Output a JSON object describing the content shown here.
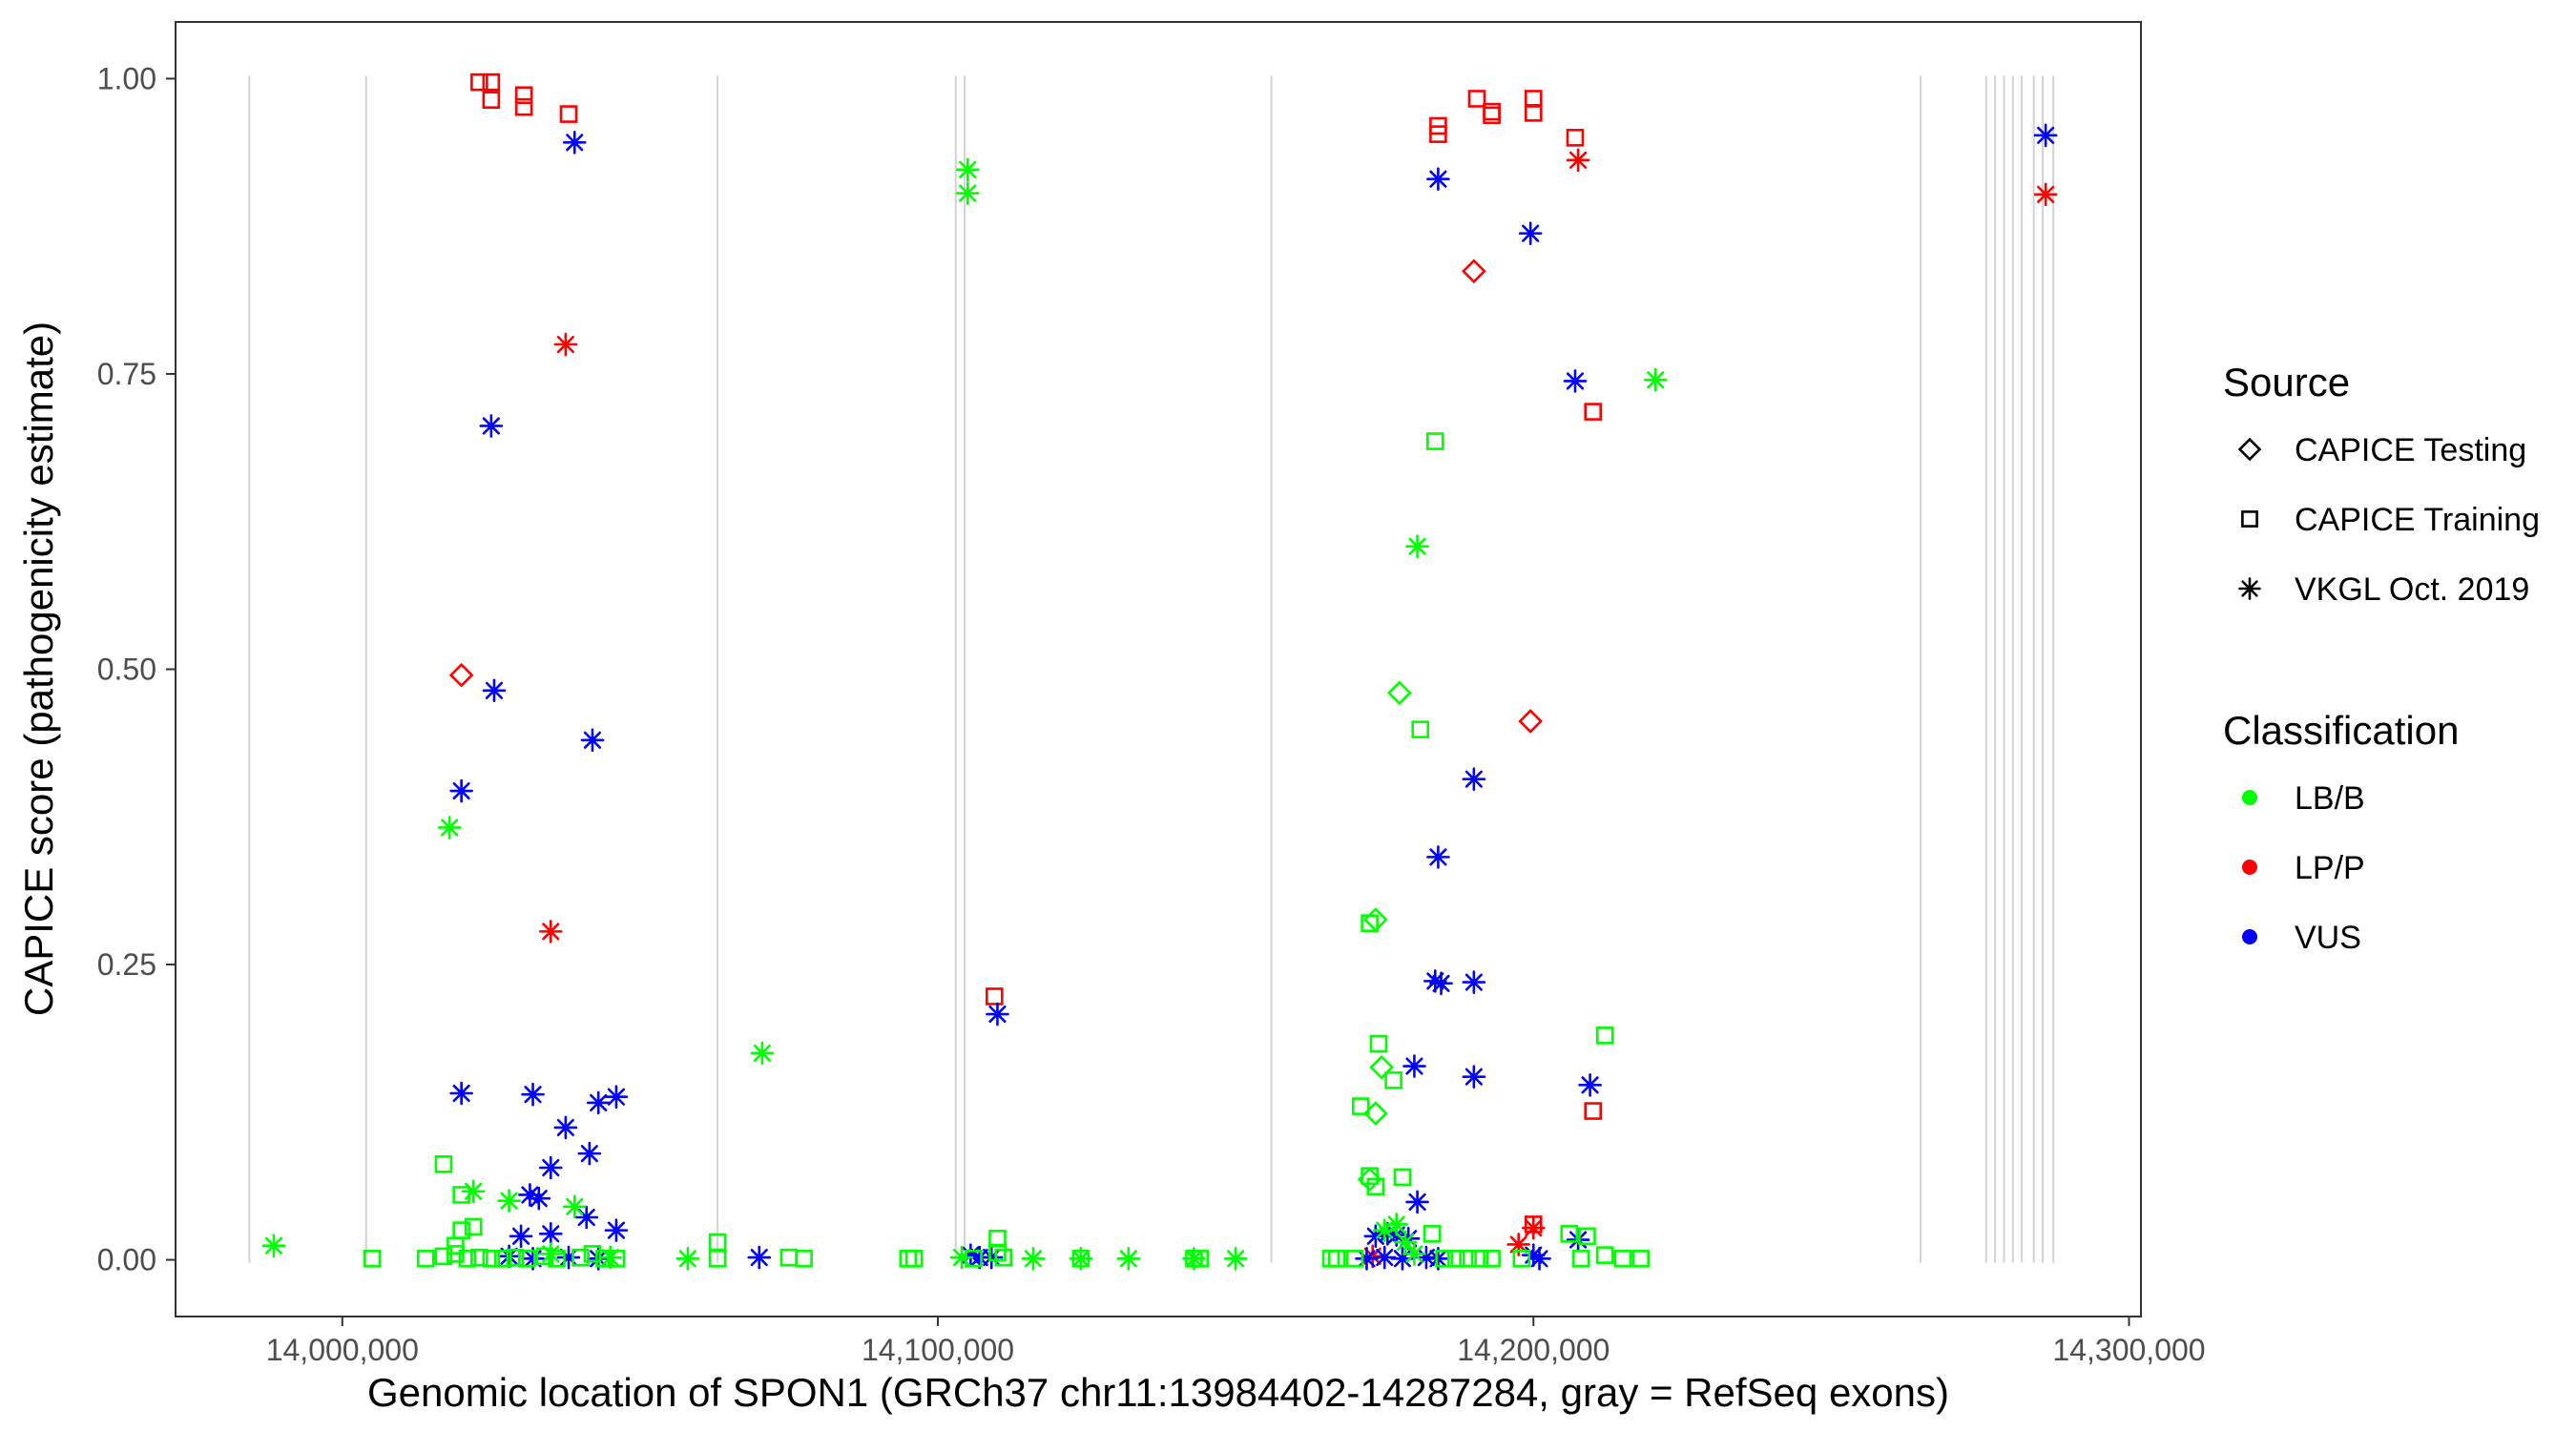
{
  "chart_data": {
    "type": "scatter",
    "xlabel": "Genomic location of SPON1 (GRCh37 chr11:13984402-14287284, gray = RefSeq exons)",
    "ylabel": "CAPICE score (pathogenicity estimate)",
    "xlim": [
      13972000,
      14302000
    ],
    "ylim": [
      -0.048,
      1.048
    ],
    "x_ticks": [
      {
        "value": 14000000,
        "label": "14,000,000"
      },
      {
        "value": 14100000,
        "label": "14,100,000"
      },
      {
        "value": 14200000,
        "label": "14,200,000"
      },
      {
        "value": 14300000,
        "label": "14,300,000"
      }
    ],
    "y_ticks": [
      {
        "value": 0.0,
        "label": "0.00"
      },
      {
        "value": 0.25,
        "label": "0.25"
      },
      {
        "value": 0.5,
        "label": "0.50"
      },
      {
        "value": 0.75,
        "label": "0.75"
      },
      {
        "value": 1.0,
        "label": "1.00"
      }
    ],
    "grid": false,
    "exon_lines_color": "#d3d3d3",
    "exon_positions": [
      13984402,
      14004000,
      14063000,
      14103000,
      14104500,
      14156000,
      14265000,
      14276000,
      14277500,
      14279000,
      14280500,
      14282000,
      14284000,
      14285500,
      14287284
    ],
    "legend_position": "right",
    "legends": [
      {
        "title": "Source",
        "entries": [
          {
            "label": "CAPICE Testing",
            "shape": "diamond"
          },
          {
            "label": "CAPICE Training",
            "shape": "square"
          },
          {
            "label": "VKGL Oct. 2019",
            "shape": "asterisk"
          }
        ]
      },
      {
        "title": "Classification",
        "entries": [
          {
            "label": "LB/B",
            "color": "#00ff00"
          },
          {
            "label": "LP/P",
            "color": "#ff0000"
          },
          {
            "label": "VUS",
            "color": "#0000ff"
          }
        ]
      }
    ],
    "colors": {
      "LB/B": "#00ff00",
      "LP/P": "#ff0000",
      "VUS": "#0000ff"
    },
    "series": [
      {
        "classification": "LP/P",
        "source": "CAPICE Training",
        "points": [
          [
            14023000,
            0.997
          ],
          [
            14025000,
            0.997
          ],
          [
            14025000,
            0.982
          ],
          [
            14030500,
            0.986
          ],
          [
            14030500,
            0.976
          ],
          [
            14038000,
            0.97
          ],
          [
            14109500,
            0.223
          ],
          [
            14184000,
            0.96
          ],
          [
            14184000,
            0.953
          ],
          [
            14190500,
            0.983
          ],
          [
            14193000,
            0.972
          ],
          [
            14193000,
            0.969
          ],
          [
            14200000,
            0.983
          ],
          [
            14200000,
            0.971
          ],
          [
            14207000,
            0.95
          ],
          [
            14210000,
            0.718
          ],
          [
            14210000,
            0.126
          ],
          [
            14200000,
            0.03
          ]
        ]
      },
      {
        "classification": "LP/P",
        "source": "CAPICE Testing",
        "points": [
          [
            14020000,
            0.495
          ],
          [
            14190000,
            0.837
          ],
          [
            14199500,
            0.456
          ]
        ]
      },
      {
        "classification": "LP/P",
        "source": "VKGL Oct. 2019",
        "points": [
          [
            14037500,
            0.775
          ],
          [
            14035000,
            0.278
          ],
          [
            14207500,
            0.931
          ],
          [
            14286000,
            0.902
          ],
          [
            14173000,
            0.003
          ],
          [
            14197500,
            0.013
          ],
          [
            14200000,
            0.027
          ]
        ]
      },
      {
        "classification": "VUS",
        "source": "VKGL Oct. 2019",
        "points": [
          [
            14039000,
            0.946
          ],
          [
            14025000,
            0.706
          ],
          [
            14025500,
            0.482
          ],
          [
            14042000,
            0.44
          ],
          [
            14020000,
            0.397
          ],
          [
            14020000,
            0.141
          ],
          [
            14032000,
            0.14
          ],
          [
            14043000,
            0.133
          ],
          [
            14046000,
            0.138
          ],
          [
            14037500,
            0.112
          ],
          [
            14041500,
            0.09
          ],
          [
            14035000,
            0.078
          ],
          [
            14031500,
            0.055
          ],
          [
            14033000,
            0.052
          ],
          [
            14041000,
            0.036
          ],
          [
            14046000,
            0.025
          ],
          [
            14030000,
            0.02
          ],
          [
            14035000,
            0.022
          ],
          [
            14028000,
            0.003
          ],
          [
            14032000,
            0.001
          ],
          [
            14038000,
            0.002
          ],
          [
            14043000,
            0.001
          ],
          [
            14070000,
            0.002
          ],
          [
            14105500,
            0.004
          ],
          [
            14107000,
            0.002
          ],
          [
            14109000,
            0.002
          ],
          [
            14110000,
            0.208
          ],
          [
            14184000,
            0.915
          ],
          [
            14199500,
            0.869
          ],
          [
            14207000,
            0.744
          ],
          [
            14190000,
            0.407
          ],
          [
            14184000,
            0.341
          ],
          [
            14183500,
            0.236
          ],
          [
            14184500,
            0.234
          ],
          [
            14190000,
            0.235
          ],
          [
            14180000,
            0.164
          ],
          [
            14190000,
            0.155
          ],
          [
            14209500,
            0.148
          ],
          [
            14180500,
            0.049
          ],
          [
            14173500,
            0.02
          ],
          [
            14175500,
            0.022
          ],
          [
            14177000,
            0.021
          ],
          [
            14179000,
            0.018
          ],
          [
            14172000,
            0.001
          ],
          [
            14175000,
            0.002
          ],
          [
            14178000,
            0.001
          ],
          [
            14182000,
            0.002
          ],
          [
            14184000,
            0.001
          ],
          [
            14200000,
            0.004
          ],
          [
            14201000,
            0.001
          ],
          [
            14207500,
            0.017
          ],
          [
            14286000,
            0.952
          ]
        ]
      },
      {
        "classification": "LB/B",
        "source": "VKGL Oct. 2019",
        "points": [
          [
            13988500,
            0.012
          ],
          [
            14018000,
            0.366
          ],
          [
            14070500,
            0.175
          ],
          [
            14105000,
            0.923
          ],
          [
            14105000,
            0.903
          ],
          [
            14220500,
            0.745
          ],
          [
            14180500,
            0.604
          ],
          [
            14022000,
            0.058
          ],
          [
            14028000,
            0.05
          ],
          [
            14039000,
            0.045
          ],
          [
            14035000,
            0.005
          ],
          [
            14045000,
            0.002
          ],
          [
            14058000,
            0.001
          ],
          [
            14104000,
            0.002
          ],
          [
            14116000,
            0.001
          ],
          [
            14124000,
            0.001
          ],
          [
            14132000,
            0.001
          ],
          [
            14143000,
            0.001
          ],
          [
            14150000,
            0.001
          ],
          [
            14175000,
            0.025
          ],
          [
            14177000,
            0.03
          ],
          [
            14178500,
            0.015
          ],
          [
            14180000,
            0.005
          ]
        ]
      },
      {
        "classification": "LB/B",
        "source": "CAPICE Training",
        "points": [
          [
            14005000,
            0.001
          ],
          [
            14017000,
            0.081
          ],
          [
            14014000,
            0.001
          ],
          [
            14017000,
            0.003
          ],
          [
            14019000,
            0.005
          ],
          [
            14021000,
            0.001
          ],
          [
            14023000,
            0.002
          ],
          [
            14025000,
            0.001
          ],
          [
            14020000,
            0.055
          ],
          [
            14020000,
            0.025
          ],
          [
            14022000,
            0.028
          ],
          [
            14019000,
            0.012
          ],
          [
            14027000,
            0.001
          ],
          [
            14029000,
            0.002
          ],
          [
            14031000,
            0.001
          ],
          [
            14034000,
            0.003
          ],
          [
            14036000,
            0.001
          ],
          [
            14040000,
            0.002
          ],
          [
            14042000,
            0.005
          ],
          [
            14044000,
            0.001
          ],
          [
            14046000,
            0.001
          ],
          [
            14063000,
            0.015
          ],
          [
            14063000,
            0.001
          ],
          [
            14075000,
            0.002
          ],
          [
            14077500,
            0.001
          ],
          [
            14095000,
            0.001
          ],
          [
            14096000,
            0.001
          ],
          [
            14106000,
            0.001
          ],
          [
            14110000,
            0.018
          ],
          [
            14110000,
            0.006
          ],
          [
            14111000,
            0.002
          ],
          [
            14124000,
            0.001
          ],
          [
            14143000,
            0.001
          ],
          [
            14144000,
            0.001
          ],
          [
            14166000,
            0.001
          ],
          [
            14167000,
            0.001
          ],
          [
            14170000,
            0.001
          ],
          [
            14171000,
            0.13
          ],
          [
            14172500,
            0.071
          ],
          [
            14174000,
            0.183
          ],
          [
            14176500,
            0.152
          ],
          [
            14178000,
            0.07
          ],
          [
            14181000,
            0.449
          ],
          [
            14183500,
            0.693
          ],
          [
            14172500,
            0.285
          ],
          [
            14173500,
            0.062
          ],
          [
            14183000,
            0.022
          ],
          [
            14185000,
            0.001
          ],
          [
            14187000,
            0.001
          ],
          [
            14189000,
            0.001
          ],
          [
            14191000,
            0.001
          ],
          [
            14193000,
            0.001
          ],
          [
            14206000,
            0.022
          ],
          [
            14209000,
            0.02
          ],
          [
            14212000,
            0.19
          ],
          [
            14212000,
            0.004
          ],
          [
            14215000,
            0.001
          ],
          [
            14218000,
            0.001
          ],
          [
            14208000,
            0.001
          ],
          [
            14198000,
            0.001
          ]
        ]
      },
      {
        "classification": "LB/B",
        "source": "CAPICE Testing",
        "points": [
          [
            14177500,
            0.48
          ],
          [
            14173500,
            0.288
          ],
          [
            14174500,
            0.163
          ],
          [
            14173500,
            0.124
          ],
          [
            14172500,
            0.068
          ]
        ]
      }
    ]
  }
}
